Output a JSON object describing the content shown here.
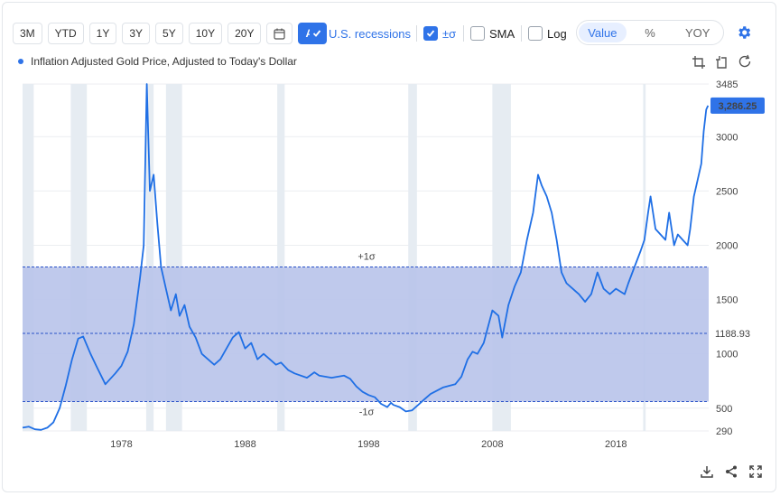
{
  "toolbar": {
    "ranges": [
      "3M",
      "YTD",
      "1Y",
      "3Y",
      "5Y",
      "10Y",
      "20Y"
    ],
    "calendar_icon": "calendar-icon",
    "all_label": "All",
    "recessions_label": "U.S. recessions",
    "sigma_label": "±σ",
    "sma_label": "SMA",
    "log_label": "Log",
    "view_modes": [
      "Value",
      "%",
      "YOY"
    ],
    "settings_icon": "gear-icon",
    "colors": {
      "accent": "#2f73e8",
      "line": "#1f6fe5",
      "band": "#bac4ea",
      "recession": "#e6ecf2"
    }
  },
  "actions": {
    "icons": [
      "crop-icon",
      "crop-alt-icon",
      "refresh-icon"
    ],
    "bottom_icons": [
      "download-icon",
      "share-icon",
      "fullscreen-icon"
    ]
  },
  "chart_data": {
    "type": "line",
    "title": "",
    "legend": "Inflation Adjusted Gold Price, Adjusted to Today's Dollar",
    "log_scale": false,
    "xlim": [
      1970.0,
      2025.5
    ],
    "ylim": [
      290,
      3485
    ],
    "x_ticks": [
      "1978",
      "1988",
      "1998",
      "2008",
      "2018"
    ],
    "y_ticks": [
      "3485",
      "3000",
      "2500",
      "2000",
      "1500",
      "1000",
      "500",
      "290"
    ],
    "last_value": 3286.25,
    "last_value_label": "3,286.25",
    "mean": 1188.93,
    "mean_label": "1188.93",
    "upper_sigma": 1800,
    "lower_sigma": 560,
    "upper_label": "+1σ",
    "lower_label": "-1σ",
    "recessions": [
      [
        1970.0,
        1970.9
      ],
      [
        1973.9,
        1975.2
      ],
      [
        1980.0,
        1980.6
      ],
      [
        1981.6,
        1982.9
      ],
      [
        1990.6,
        1991.2
      ],
      [
        2001.2,
        2001.9
      ],
      [
        2008.0,
        2009.5
      ],
      [
        2020.2,
        2020.4
      ]
    ],
    "series": [
      {
        "x": [
          1970.0,
          1970.5,
          1971.0,
          1971.5,
          1972.0,
          1972.5,
          1973.0,
          1973.5,
          1974.0,
          1974.5,
          1974.9,
          1975.5,
          1976.0,
          1976.7,
          1977.5,
          1978.0,
          1978.5,
          1979.0,
          1979.5,
          1979.8,
          1980.05,
          1980.3,
          1980.6,
          1980.9,
          1981.2,
          1981.6,
          1982.0,
          1982.4,
          1982.7,
          1983.1,
          1983.5,
          1984.0,
          1984.5,
          1985.0,
          1985.5,
          1986.0,
          1986.5,
          1987.0,
          1987.5,
          1988.0,
          1988.5,
          1989.0,
          1989.5,
          1990.0,
          1990.5,
          1990.9,
          1991.5,
          1992.0,
          1993.0,
          1993.6,
          1994.0,
          1995.0,
          1996.0,
          1996.5,
          1997.0,
          1997.5,
          1998.0,
          1998.5,
          1999.0,
          1999.5,
          1999.8,
          2000.0,
          2000.5,
          2001.0,
          2001.5,
          2002.0,
          2002.5,
          2003.0,
          2004.0,
          2005.0,
          2005.5,
          2006.0,
          2006.4,
          2006.8,
          2007.3,
          2008.0,
          2008.5,
          2008.8,
          2009.3,
          2009.8,
          2010.3,
          2010.8,
          2011.3,
          2011.7,
          2012.0,
          2012.4,
          2012.8,
          2013.2,
          2013.6,
          2014.0,
          2014.5,
          2015.0,
          2015.5,
          2016.0,
          2016.5,
          2017.0,
          2017.5,
          2018.0,
          2018.7,
          2019.0,
          2019.5,
          2020.0,
          2020.3,
          2020.6,
          2020.8,
          2021.2,
          2021.6,
          2022.0,
          2022.3,
          2022.7,
          2023.0,
          2023.4,
          2023.8,
          2024.0,
          2024.3,
          2024.6,
          2024.9,
          2025.1,
          2025.3,
          2025.45
        ],
        "values": [
          320,
          330,
          305,
          300,
          320,
          370,
          500,
          710,
          950,
          1140,
          1160,
          1000,
          880,
          720,
          820,
          890,
          1020,
          1270,
          1700,
          2000,
          3485,
          2500,
          2650,
          2200,
          1800,
          1600,
          1400,
          1550,
          1350,
          1450,
          1250,
          1150,
          1000,
          950,
          900,
          950,
          1050,
          1150,
          1200,
          1050,
          1100,
          950,
          1000,
          950,
          900,
          920,
          850,
          820,
          780,
          830,
          800,
          780,
          800,
          770,
          700,
          650,
          620,
          600,
          540,
          510,
          550,
          530,
          510,
          470,
          480,
          530,
          580,
          630,
          690,
          720,
          790,
          950,
          1020,
          1000,
          1100,
          1400,
          1350,
          1150,
          1450,
          1620,
          1750,
          2050,
          2300,
          2650,
          2550,
          2450,
          2300,
          2050,
          1750,
          1650,
          1600,
          1550,
          1480,
          1550,
          1750,
          1600,
          1550,
          1600,
          1550,
          1650,
          1800,
          1950,
          2050,
          2300,
          2450,
          2150,
          2100,
          2050,
          2300,
          2000,
          2100,
          2050,
          2000,
          2150,
          2450,
          2600,
          2750,
          3050,
          3250,
          3286.25
        ]
      }
    ]
  }
}
